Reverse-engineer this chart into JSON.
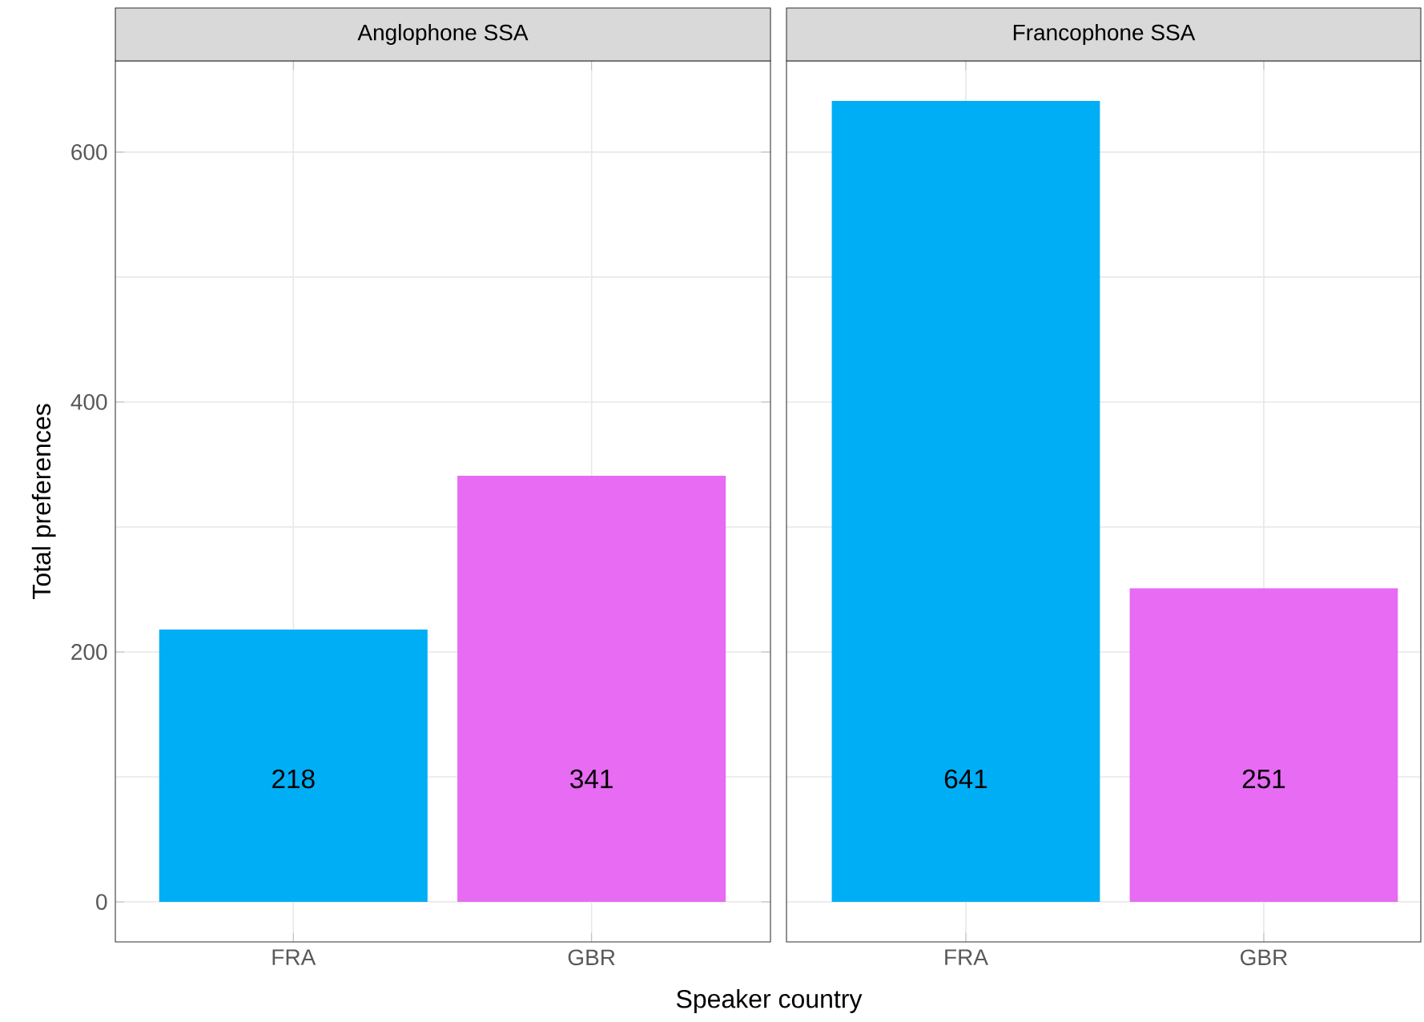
{
  "chart_data": [
    {
      "type": "bar",
      "title": "Anglophone SSA",
      "categories": [
        "FRA",
        "GBR"
      ],
      "values": [
        218,
        341
      ],
      "colors": [
        "#00aef6",
        "#e76bf3"
      ],
      "data_labels": true,
      "ylim": [
        -32,
        673
      ],
      "yticks": [
        0,
        200,
        400,
        600
      ],
      "grid": true,
      "ylabel": "Total preferences",
      "xlabel": "Speaker country"
    },
    {
      "type": "bar",
      "title": "Francophone SSA",
      "categories": [
        "FRA",
        "GBR"
      ],
      "values": [
        641,
        251
      ],
      "colors": [
        "#00aef6",
        "#e76bf3"
      ],
      "data_labels": true,
      "ylim": [
        -32,
        673
      ],
      "yticks": [
        0,
        200,
        400,
        600
      ],
      "grid": true,
      "tick_labels": "x"
    }
  ]
}
